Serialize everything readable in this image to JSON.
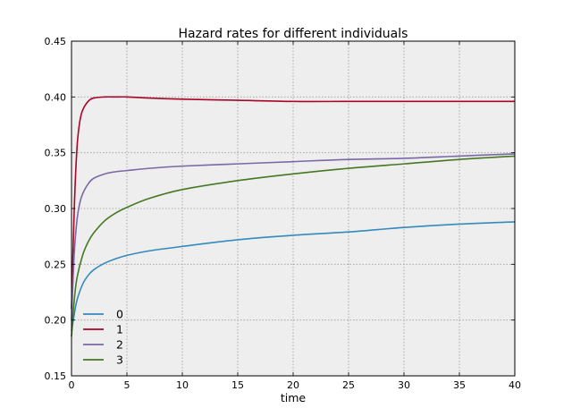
{
  "chart_data": {
    "type": "line",
    "title": "Hazard rates for different individuals",
    "xlabel": "time",
    "ylabel": "",
    "xlim": [
      0,
      40
    ],
    "ylim": [
      0.15,
      0.45
    ],
    "xticks": [
      0,
      5,
      10,
      15,
      20,
      25,
      30,
      35,
      40
    ],
    "yticks": [
      0.15,
      0.2,
      0.25,
      0.3,
      0.35,
      0.4,
      0.45
    ],
    "ytick_labels": [
      "0.15",
      "0.20",
      "0.25",
      "0.30",
      "0.35",
      "0.40",
      "0.45"
    ],
    "grid": true,
    "legend": "lower-left",
    "background": "#eeeeee",
    "series": [
      {
        "name": "0",
        "color": "#348abd",
        "points": [
          [
            0,
            0.19
          ],
          [
            0.25,
            0.205
          ],
          [
            0.5,
            0.218
          ],
          [
            1,
            0.232
          ],
          [
            1.5,
            0.24
          ],
          [
            2,
            0.245
          ],
          [
            3,
            0.251
          ],
          [
            4,
            0.255
          ],
          [
            5,
            0.258
          ],
          [
            7,
            0.262
          ],
          [
            10,
            0.266
          ],
          [
            15,
            0.272
          ],
          [
            20,
            0.276
          ],
          [
            25,
            0.279
          ],
          [
            30,
            0.283
          ],
          [
            35,
            0.286
          ],
          [
            40,
            0.288
          ]
        ]
      },
      {
        "name": "1",
        "color": "#a60628",
        "points": [
          [
            0,
            0.21
          ],
          [
            0.25,
            0.3
          ],
          [
            0.5,
            0.355
          ],
          [
            0.75,
            0.378
          ],
          [
            1,
            0.388
          ],
          [
            1.5,
            0.396
          ],
          [
            2,
            0.399
          ],
          [
            3,
            0.4
          ],
          [
            4,
            0.4
          ],
          [
            5,
            0.4
          ],
          [
            7,
            0.399
          ],
          [
            10,
            0.398
          ],
          [
            15,
            0.397
          ],
          [
            20,
            0.396
          ],
          [
            25,
            0.396
          ],
          [
            30,
            0.396
          ],
          [
            35,
            0.396
          ],
          [
            40,
            0.396
          ]
        ]
      },
      {
        "name": "2",
        "color": "#7a68a6",
        "points": [
          [
            0,
            0.2
          ],
          [
            0.25,
            0.26
          ],
          [
            0.5,
            0.29
          ],
          [
            0.75,
            0.305
          ],
          [
            1,
            0.313
          ],
          [
            1.5,
            0.322
          ],
          [
            2,
            0.327
          ],
          [
            3,
            0.331
          ],
          [
            4,
            0.333
          ],
          [
            5,
            0.334
          ],
          [
            7,
            0.336
          ],
          [
            10,
            0.338
          ],
          [
            15,
            0.34
          ],
          [
            20,
            0.342
          ],
          [
            25,
            0.344
          ],
          [
            30,
            0.345
          ],
          [
            35,
            0.347
          ],
          [
            40,
            0.349
          ]
        ]
      },
      {
        "name": "3",
        "color": "#467821",
        "points": [
          [
            0,
            0.185
          ],
          [
            0.25,
            0.218
          ],
          [
            0.5,
            0.238
          ],
          [
            1,
            0.258
          ],
          [
            1.5,
            0.27
          ],
          [
            2,
            0.278
          ],
          [
            3,
            0.289
          ],
          [
            4,
            0.296
          ],
          [
            5,
            0.301
          ],
          [
            7,
            0.309
          ],
          [
            10,
            0.317
          ],
          [
            15,
            0.325
          ],
          [
            20,
            0.331
          ],
          [
            25,
            0.336
          ],
          [
            30,
            0.34
          ],
          [
            35,
            0.344
          ],
          [
            40,
            0.347
          ]
        ]
      }
    ]
  }
}
